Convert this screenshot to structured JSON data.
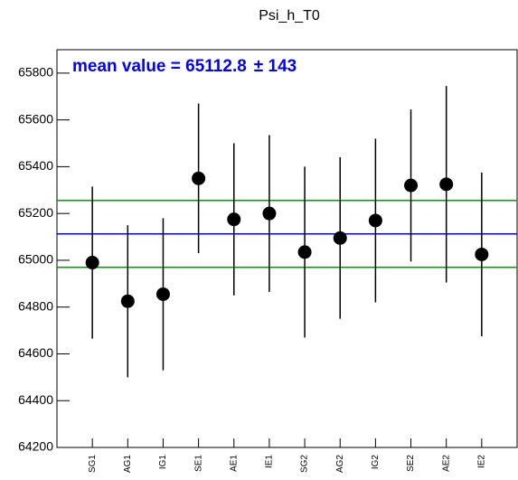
{
  "chart_data": {
    "type": "errorbar",
    "title": "Psi_h_T0",
    "categories": [
      "SG1",
      "AG1",
      "IG1",
      "SE1",
      "AE1",
      "IE1",
      "SG2",
      "AG2",
      "IG2",
      "SE2",
      "AE2",
      "IE2"
    ],
    "values": [
      64990,
      64825,
      64855,
      65350,
      65175,
      65200,
      65035,
      65095,
      65170,
      65320,
      65325,
      65025
    ],
    "errors": [
      325,
      325,
      325,
      320,
      325,
      335,
      365,
      345,
      350,
      325,
      420,
      350
    ],
    "color": "#000000",
    "ylim": [
      64200,
      65900
    ],
    "yticks": [
      64200,
      64400,
      64600,
      64800,
      65000,
      65200,
      65400,
      65600,
      65800
    ],
    "hlines": [
      {
        "value": 65112.8,
        "color": "#0000ff"
      },
      {
        "value": 65255.8,
        "color": "#00a000"
      },
      {
        "value": 64969.8,
        "color": "#00a000"
      }
    ],
    "annotation": "mean value = 65112.8",
    "annotation_error": "± 143",
    "annotation_color": "#0000ff"
  }
}
